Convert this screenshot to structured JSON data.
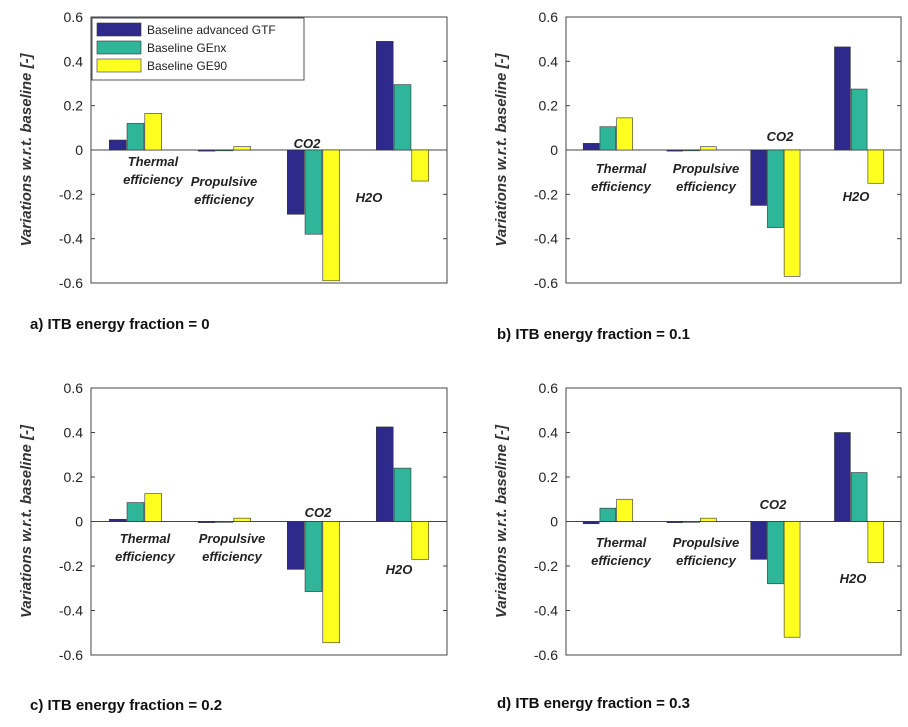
{
  "figure": {
    "ylabel": "Variations w.r.t. baseline [-]",
    "yticks": [
      "0.6",
      "0.4",
      "0.2",
      "0",
      "-0.2",
      "-0.4",
      "-0.6"
    ],
    "legend": [
      "Baseline advanced GTF",
      "Baseline GEnx",
      "Baseline GE90"
    ],
    "colors": {
      "series0": "#2e2a8c",
      "series1": "#2fb59a",
      "series2": "#ffff1f"
    }
  },
  "chart_data": [
    {
      "type": "bar",
      "caption": "a) ITB energy fraction = 0",
      "ylabel": "Variations w.r.t. baseline [-]",
      "ylim": [
        -0.6,
        0.6
      ],
      "category_labels": [
        [
          "Thermal",
          "efficiency"
        ],
        [
          "Propulsive",
          "efficiency"
        ],
        [
          "CO2"
        ],
        [
          "H2O"
        ]
      ],
      "series": [
        {
          "name": "Baseline advanced GTF",
          "values": [
            0.045,
            -0.005,
            -0.29,
            0.49
          ]
        },
        {
          "name": "Baseline GEnx",
          "values": [
            0.12,
            0.0,
            -0.38,
            0.295
          ]
        },
        {
          "name": "Baseline GE90",
          "values": [
            0.165,
            0.015,
            -0.59,
            -0.14
          ]
        }
      ]
    },
    {
      "type": "bar",
      "caption": "b) ITB energy fraction = 0.1",
      "ylabel": "Variations w.r.t. baseline [-]",
      "ylim": [
        -0.6,
        0.6
      ],
      "category_labels": [
        [
          "Thermal",
          "efficiency"
        ],
        [
          "Propulsive",
          "efficiency"
        ],
        [
          "CO2"
        ],
        [
          "H2O"
        ]
      ],
      "series": [
        {
          "name": "Baseline advanced GTF",
          "values": [
            0.03,
            -0.005,
            -0.25,
            0.465
          ]
        },
        {
          "name": "Baseline GEnx",
          "values": [
            0.105,
            0.0,
            -0.35,
            0.275
          ]
        },
        {
          "name": "Baseline GE90",
          "values": [
            0.145,
            0.015,
            -0.57,
            -0.15
          ]
        }
      ]
    },
    {
      "type": "bar",
      "caption": "c) ITB energy fraction = 0.2",
      "ylabel": "Variations w.r.t. baseline [-]",
      "ylim": [
        -0.6,
        0.6
      ],
      "category_labels": [
        [
          "Thermal",
          "efficiency"
        ],
        [
          "Propulsive",
          "efficiency"
        ],
        [
          "CO2"
        ],
        [
          "H2O"
        ]
      ],
      "series": [
        {
          "name": "Baseline advanced GTF",
          "values": [
            0.01,
            -0.005,
            -0.215,
            0.425
          ]
        },
        {
          "name": "Baseline GEnx",
          "values": [
            0.085,
            0.0,
            -0.315,
            0.24
          ]
        },
        {
          "name": "Baseline GE90",
          "values": [
            0.125,
            0.015,
            -0.545,
            -0.17
          ]
        }
      ]
    },
    {
      "type": "bar",
      "caption": "d) ITB energy fraction = 0.3",
      "ylabel": "Variations w.r.t. baseline [-]",
      "ylim": [
        -0.6,
        0.6
      ],
      "category_labels": [
        [
          "Thermal",
          "efficiency"
        ],
        [
          "Propulsive",
          "efficiency"
        ],
        [
          "CO2"
        ],
        [
          "H2O"
        ]
      ],
      "series": [
        {
          "name": "Baseline advanced GTF",
          "values": [
            -0.01,
            -0.005,
            -0.17,
            0.4
          ]
        },
        {
          "name": "Baseline GEnx",
          "values": [
            0.06,
            0.0,
            -0.28,
            0.22
          ]
        },
        {
          "name": "Baseline GE90",
          "values": [
            0.1,
            0.015,
            -0.52,
            -0.185
          ]
        }
      ]
    }
  ]
}
